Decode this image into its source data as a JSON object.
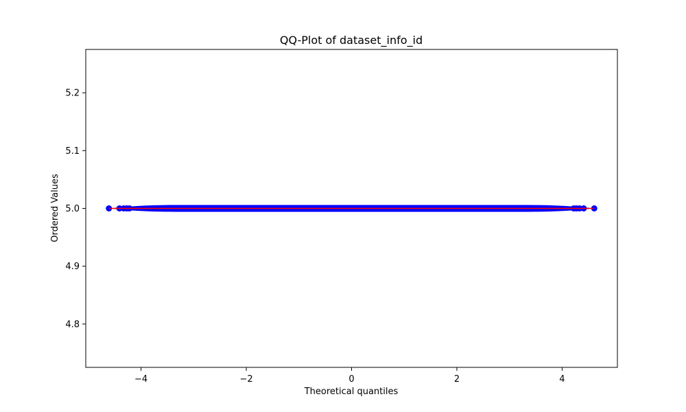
{
  "chart_data": {
    "type": "scatter",
    "title": "QQ-Plot of dataset_info_id",
    "xlabel": "Theoretical quantiles",
    "ylabel": "Ordered Values",
    "xlim": [
      -5.05,
      5.05
    ],
    "ylim": [
      4.725,
      5.275
    ],
    "xticks": [
      -4,
      -2,
      0,
      2,
      4
    ],
    "xtick_labels": [
      "−4",
      "−2",
      "0",
      "2",
      "4"
    ],
    "yticks": [
      4.8,
      4.9,
      5.0,
      5.1,
      5.2
    ],
    "ytick_labels": [
      "4.8",
      "4.9",
      "5.0",
      "5.1",
      "5.2"
    ],
    "grid": false,
    "series": [
      {
        "marker_color": "#0000ff",
        "x_range": [
          -4.61,
          4.61
        ],
        "y_value": 5.0,
        "outlier_x": [
          -4.61,
          -4.41,
          -4.33,
          -4.27,
          -4.22,
          4.22,
          4.27,
          4.33,
          4.41,
          4.61
        ]
      }
    ],
    "fit_line": {
      "color": "#ff0000",
      "x": [
        -4.61,
        4.61
      ],
      "y": [
        5.0,
        5.0
      ]
    }
  }
}
